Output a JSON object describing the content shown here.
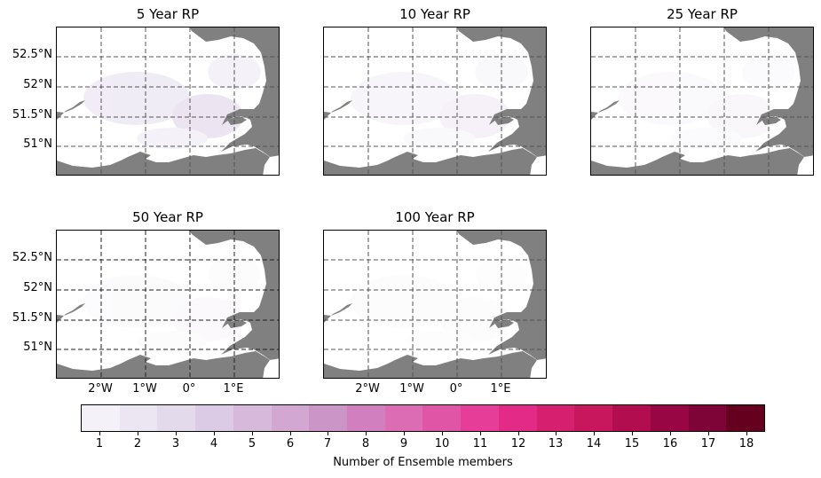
{
  "panels": [
    {
      "title": "5 Year RP",
      "show_ylabels": true,
      "show_xlabels": false,
      "dark_grid": false,
      "shade": 0.5
    },
    {
      "title": "10 Year RP",
      "show_ylabels": false,
      "show_xlabels": false,
      "dark_grid": false,
      "shade": 0.25
    },
    {
      "title": "25 Year RP",
      "show_ylabels": false,
      "show_xlabels": false,
      "dark_grid": false,
      "shade": 0.15
    },
    {
      "title": "50 Year RP",
      "show_ylabels": true,
      "show_xlabels": true,
      "dark_grid": true,
      "shade": 0.1
    },
    {
      "title": "100 Year RP",
      "show_ylabels": false,
      "show_xlabels": true,
      "dark_grid": false,
      "shade": 0.05
    }
  ],
  "lat_labels": [
    "52.5°N",
    "52°N",
    "51.5°N",
    "51°N"
  ],
  "lon_labels": [
    "2°W",
    "1°W",
    "0°",
    "1°E"
  ],
  "colorbar": {
    "label": "Number of Ensemble members",
    "ticks": [
      "1",
      "2",
      "3",
      "4",
      "5",
      "6",
      "7",
      "8",
      "9",
      "10",
      "11",
      "12",
      "13",
      "14",
      "15",
      "16",
      "17",
      "18"
    ],
    "colors": [
      "#f4f2f8",
      "#ebe6f2",
      "#e3daec",
      "#dccbe4",
      "#d7b9dc",
      "#d2a7d2",
      "#cc95c8",
      "#d17fbf",
      "#dc6cb3",
      "#e055a6",
      "#e63e98",
      "#e32a87",
      "#d71f6f",
      "#c8175c",
      "#b20e4f",
      "#980644",
      "#7e0336",
      "#66001f"
    ]
  },
  "land_color": "#ffffff",
  "sea_color": "#808080"
}
